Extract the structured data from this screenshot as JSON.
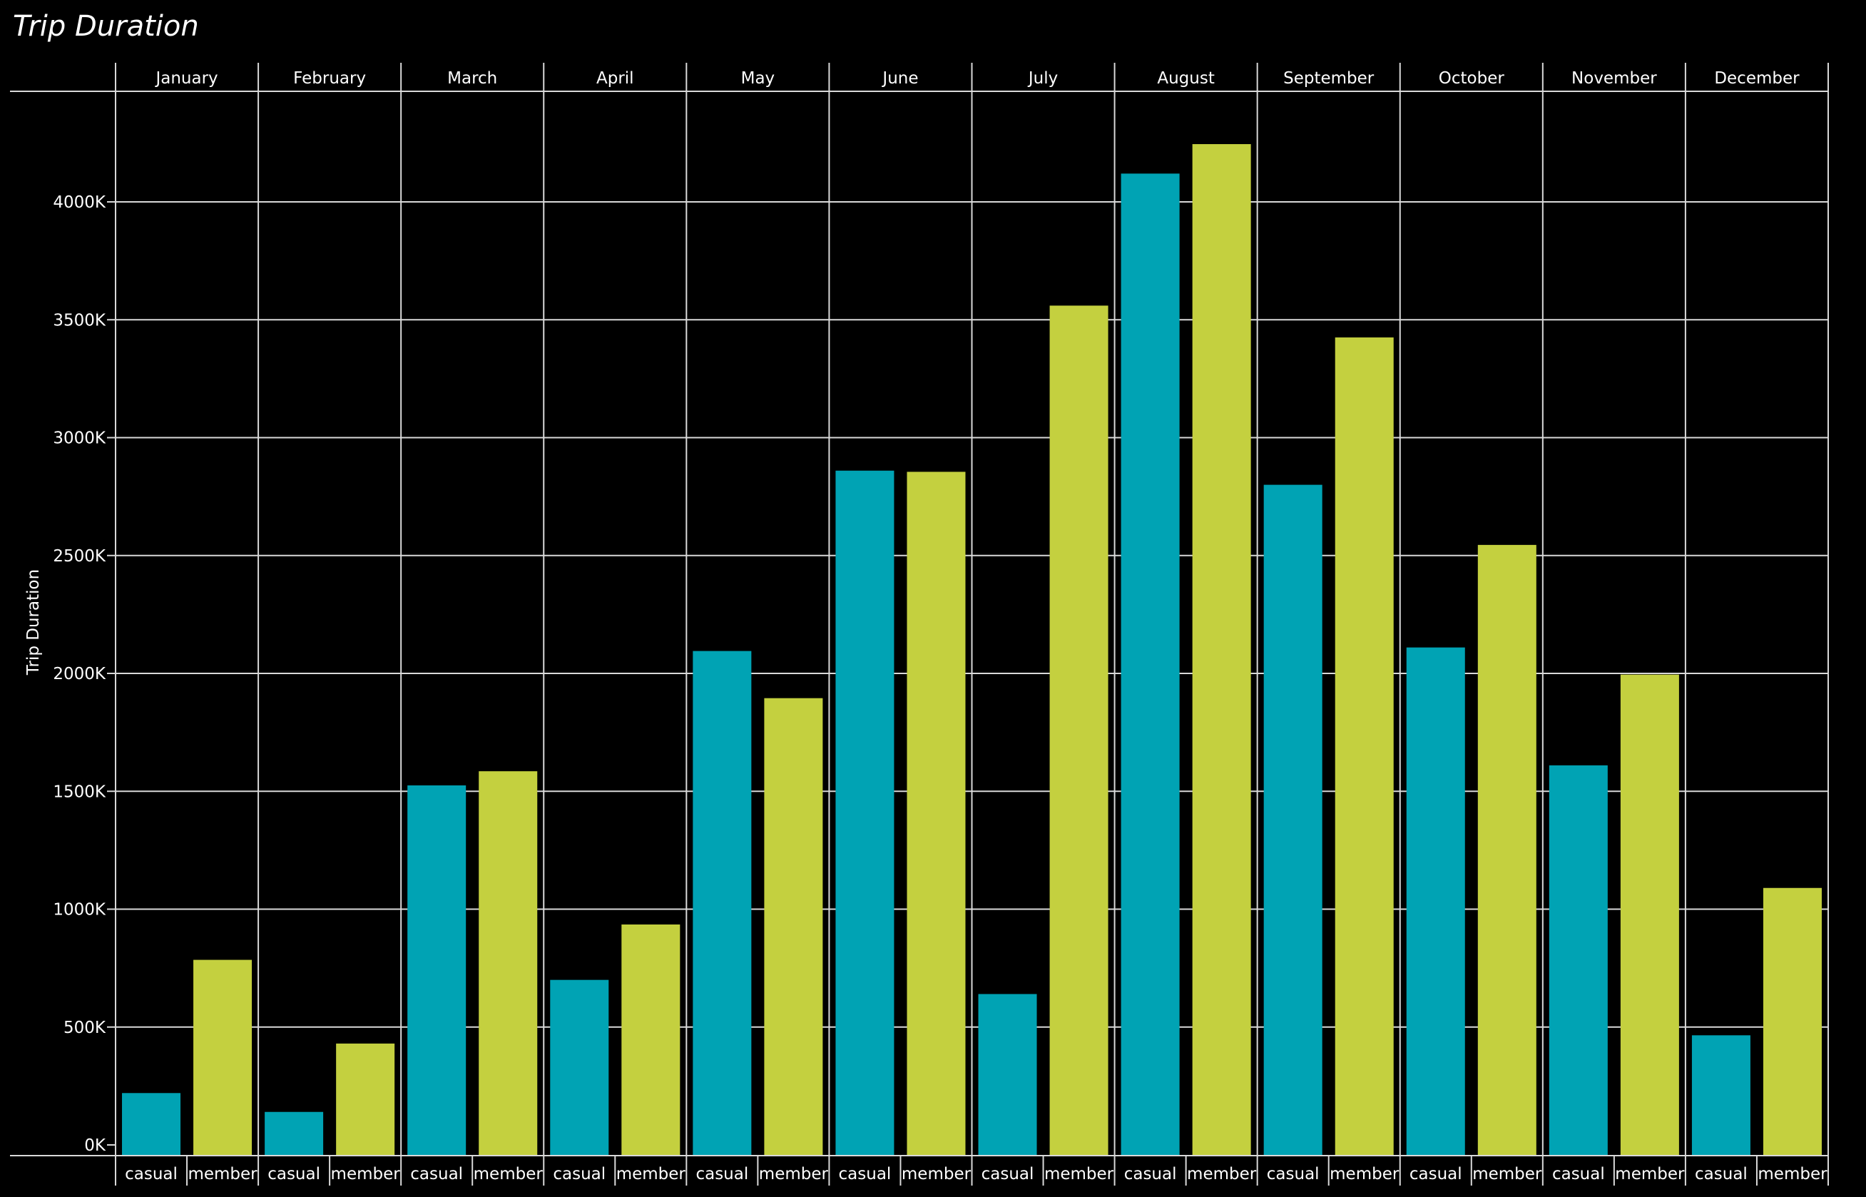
{
  "chart_data": {
    "type": "bar",
    "title": "Trip Duration",
    "ylabel": "Trip Duration",
    "xlabel": "",
    "categories": [
      "January",
      "February",
      "March",
      "April",
      "May",
      "June",
      "July",
      "August",
      "September",
      "October",
      "November",
      "December"
    ],
    "subcategories": [
      "casual",
      "member"
    ],
    "series": [
      {
        "values": [
          220,
          140,
          1525,
          700,
          2095,
          2860,
          640,
          4120,
          2800,
          2110,
          1610,
          465
        ]
      },
      {
        "values": [
          785,
          430,
          1585,
          935,
          1895,
          2855,
          3560,
          4245,
          3425,
          2545,
          1995,
          1090
        ]
      }
    ],
    "ylim": [
      0,
      4450
    ],
    "yticks": [
      0,
      500,
      1000,
      1500,
      2000,
      2500,
      3000,
      3500,
      4000
    ],
    "ytick_labels": [
      "0K",
      "500K",
      "1000K",
      "1500K",
      "2000K",
      "2500K",
      "3000K",
      "3500K",
      "4000K"
    ],
    "grid": true,
    "colors": {
      "casual": "#00A3B4",
      "member": "#C4D03F",
      "background": "#000000",
      "grid": "#D9D9D9"
    }
  }
}
